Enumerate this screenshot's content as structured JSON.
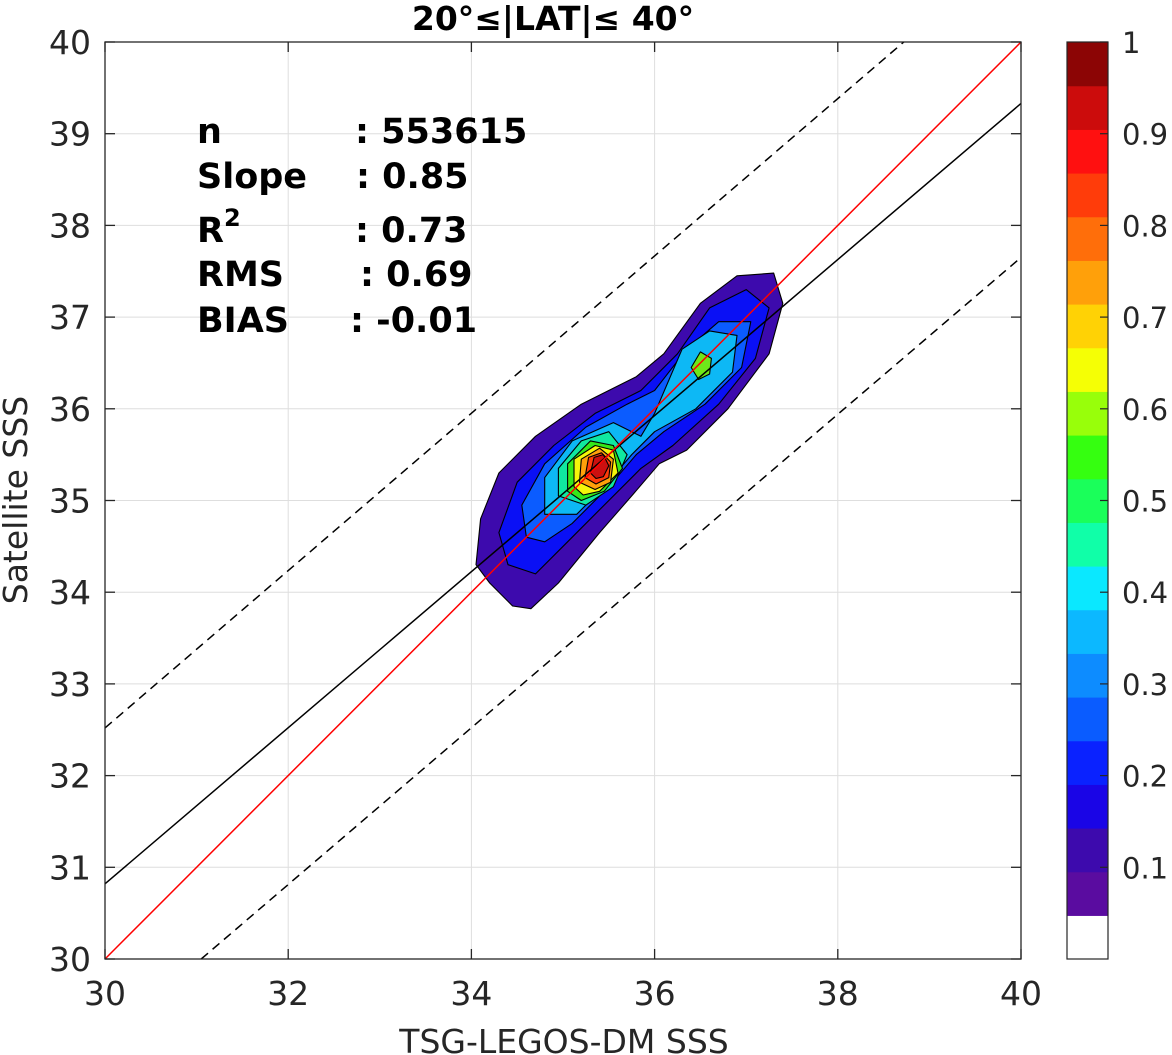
{
  "chart_data": {
    "type": "contour",
    "title": "20°≤|LAT|≤ 40°",
    "xlabel": "TSG-LEGOS-DM SSS",
    "ylabel": "Satellite SSS",
    "xlim": [
      30,
      40
    ],
    "ylim": [
      30,
      40
    ],
    "xticks": [
      "30",
      "32",
      "34",
      "36",
      "38",
      "40"
    ],
    "yticks": [
      "30",
      "31",
      "32",
      "33",
      "34",
      "35",
      "36",
      "37",
      "38",
      "39",
      "40"
    ],
    "grid": true,
    "stats": [
      {
        "label": "n",
        "value": ": 553615"
      },
      {
        "label": "Slope",
        "value": ": 0.85"
      },
      {
        "label": "R",
        "sup": "2",
        "value": ": 0.73"
      },
      {
        "label": "RMS",
        "value": ": 0.69"
      },
      {
        "label": "BIAS",
        "value": ": -0.01"
      }
    ],
    "lines": {
      "one_to_one": {
        "x": [
          30,
          40
        ],
        "y": [
          30,
          40
        ],
        "color": "#ff0000"
      },
      "fit": {
        "x": [
          30,
          40
        ],
        "y": [
          30.82,
          39.33
        ],
        "color": "#000000"
      },
      "fit_upper": {
        "x": [
          30,
          38.72
        ],
        "y": [
          32.52,
          40
        ],
        "color": "#000000",
        "dash": true
      },
      "fit_lower": {
        "x": [
          31.05,
          40
        ],
        "y": [
          30,
          37.65
        ],
        "color": "#000000",
        "dash": true
      }
    },
    "density_levels": [
      {
        "level": 0.05,
        "color": "#3d0aad",
        "points": [
          [
            34.2,
            34.1
          ],
          [
            34.05,
            34.3
          ],
          [
            34.1,
            34.8
          ],
          [
            34.3,
            35.3
          ],
          [
            34.7,
            35.7
          ],
          [
            35.2,
            36.05
          ],
          [
            35.8,
            36.35
          ],
          [
            36.1,
            36.6
          ],
          [
            36.5,
            37.15
          ],
          [
            36.9,
            37.45
          ],
          [
            37.3,
            37.48
          ],
          [
            37.4,
            37.15
          ],
          [
            37.25,
            36.6
          ],
          [
            36.8,
            36.0
          ],
          [
            36.35,
            35.55
          ],
          [
            36.05,
            35.4
          ],
          [
            35.75,
            35.05
          ],
          [
            35.4,
            34.65
          ],
          [
            34.95,
            34.1
          ],
          [
            34.65,
            33.82
          ],
          [
            34.45,
            33.85
          ]
        ]
      },
      {
        "level": 0.15,
        "color": "#0a10f5",
        "points": [
          [
            34.4,
            34.3
          ],
          [
            34.3,
            34.65
          ],
          [
            34.5,
            35.2
          ],
          [
            34.9,
            35.6
          ],
          [
            35.35,
            35.95
          ],
          [
            35.85,
            36.2
          ],
          [
            36.25,
            36.6
          ],
          [
            36.6,
            37.1
          ],
          [
            37.0,
            37.3
          ],
          [
            37.25,
            37.1
          ],
          [
            37.1,
            36.55
          ],
          [
            36.7,
            36.05
          ],
          [
            36.2,
            35.6
          ],
          [
            35.85,
            35.35
          ],
          [
            35.45,
            34.95
          ],
          [
            35.05,
            34.55
          ],
          [
            34.7,
            34.2
          ]
        ]
      },
      {
        "level": 0.25,
        "color": "#0b5cff",
        "points": [
          [
            34.6,
            34.6
          ],
          [
            34.55,
            34.95
          ],
          [
            34.8,
            35.4
          ],
          [
            35.25,
            35.8
          ],
          [
            35.7,
            36.05
          ],
          [
            36.0,
            36.2
          ],
          [
            36.35,
            36.65
          ],
          [
            36.7,
            36.95
          ],
          [
            37.05,
            36.95
          ],
          [
            36.95,
            36.45
          ],
          [
            36.55,
            36.05
          ],
          [
            36.1,
            35.75
          ],
          [
            35.8,
            35.5
          ],
          [
            35.5,
            35.15
          ],
          [
            35.1,
            34.75
          ],
          [
            34.8,
            34.55
          ]
        ]
      },
      {
        "level": 0.35,
        "color": "#0db8f5",
        "points": [
          [
            34.8,
            34.85
          ],
          [
            34.8,
            35.25
          ],
          [
            35.1,
            35.65
          ],
          [
            35.55,
            35.85
          ],
          [
            35.85,
            35.7
          ],
          [
            36.0,
            35.95
          ],
          [
            36.3,
            36.65
          ],
          [
            36.6,
            36.85
          ],
          [
            36.9,
            36.8
          ],
          [
            36.85,
            36.4
          ],
          [
            36.45,
            36.0
          ],
          [
            36.0,
            35.75
          ],
          [
            35.75,
            35.5
          ],
          [
            35.45,
            35.15
          ],
          [
            35.15,
            34.85
          ]
        ]
      },
      {
        "level": 0.45,
        "color": "#10e8a0",
        "points": [
          [
            34.95,
            35.05
          ],
          [
            34.95,
            35.35
          ],
          [
            35.2,
            35.65
          ],
          [
            35.5,
            35.75
          ],
          [
            35.7,
            35.5
          ],
          [
            35.55,
            35.15
          ],
          [
            35.25,
            34.95
          ]
        ]
      },
      {
        "level": 0.55,
        "color": "#35e81a",
        "points": [
          [
            35.05,
            35.1
          ],
          [
            35.05,
            35.4
          ],
          [
            35.3,
            35.65
          ],
          [
            35.55,
            35.6
          ],
          [
            35.65,
            35.35
          ],
          [
            35.45,
            35.1
          ],
          [
            35.2,
            35.0
          ]
        ]
      },
      {
        "level": 0.55,
        "color": "#6ee81a",
        "points": [
          [
            36.4,
            36.45
          ],
          [
            36.5,
            36.62
          ],
          [
            36.62,
            36.55
          ],
          [
            36.6,
            36.38
          ],
          [
            36.48,
            36.32
          ]
        ]
      },
      {
        "level": 0.65,
        "color": "#f5f50a",
        "points": [
          [
            35.12,
            35.15
          ],
          [
            35.12,
            35.45
          ],
          [
            35.35,
            35.6
          ],
          [
            35.55,
            35.55
          ],
          [
            35.6,
            35.3
          ],
          [
            35.4,
            35.1
          ],
          [
            35.22,
            35.06
          ]
        ]
      },
      {
        "level": 0.75,
        "color": "#ffa00a",
        "points": [
          [
            35.18,
            35.2
          ],
          [
            35.2,
            35.45
          ],
          [
            35.4,
            35.57
          ],
          [
            35.55,
            35.45
          ],
          [
            35.52,
            35.2
          ],
          [
            35.35,
            35.12
          ]
        ]
      },
      {
        "level": 0.85,
        "color": "#ff3c0a",
        "points": [
          [
            35.24,
            35.25
          ],
          [
            35.28,
            35.47
          ],
          [
            35.42,
            35.52
          ],
          [
            35.52,
            35.42
          ],
          [
            35.5,
            35.25
          ],
          [
            35.36,
            35.18
          ]
        ]
      },
      {
        "level": 0.95,
        "color": "#cc1010",
        "points": [
          [
            35.3,
            35.3
          ],
          [
            35.34,
            35.47
          ],
          [
            35.44,
            35.5
          ],
          [
            35.5,
            35.38
          ],
          [
            35.44,
            35.26
          ],
          [
            35.36,
            35.24
          ]
        ]
      }
    ],
    "colorbar": {
      "range": [
        0,
        1
      ],
      "ticks": [
        "0.1",
        "0.2",
        "0.3",
        "0.4",
        "0.5",
        "0.6",
        "0.7",
        "0.8",
        "0.9",
        "1"
      ],
      "colors": [
        "#ffffff",
        "#5a0ca0",
        "#3d0aad",
        "#1a05e6",
        "#0a22ff",
        "#0a5cff",
        "#0d8cff",
        "#0cb8ff",
        "#0ae8ff",
        "#10ffa8",
        "#1aff5a",
        "#35ff10",
        "#98ff0a",
        "#f5ff05",
        "#ffd205",
        "#ffa00a",
        "#ff6e0a",
        "#ff3c0a",
        "#ff1010",
        "#cc0c0c",
        "#8c0505"
      ]
    }
  }
}
